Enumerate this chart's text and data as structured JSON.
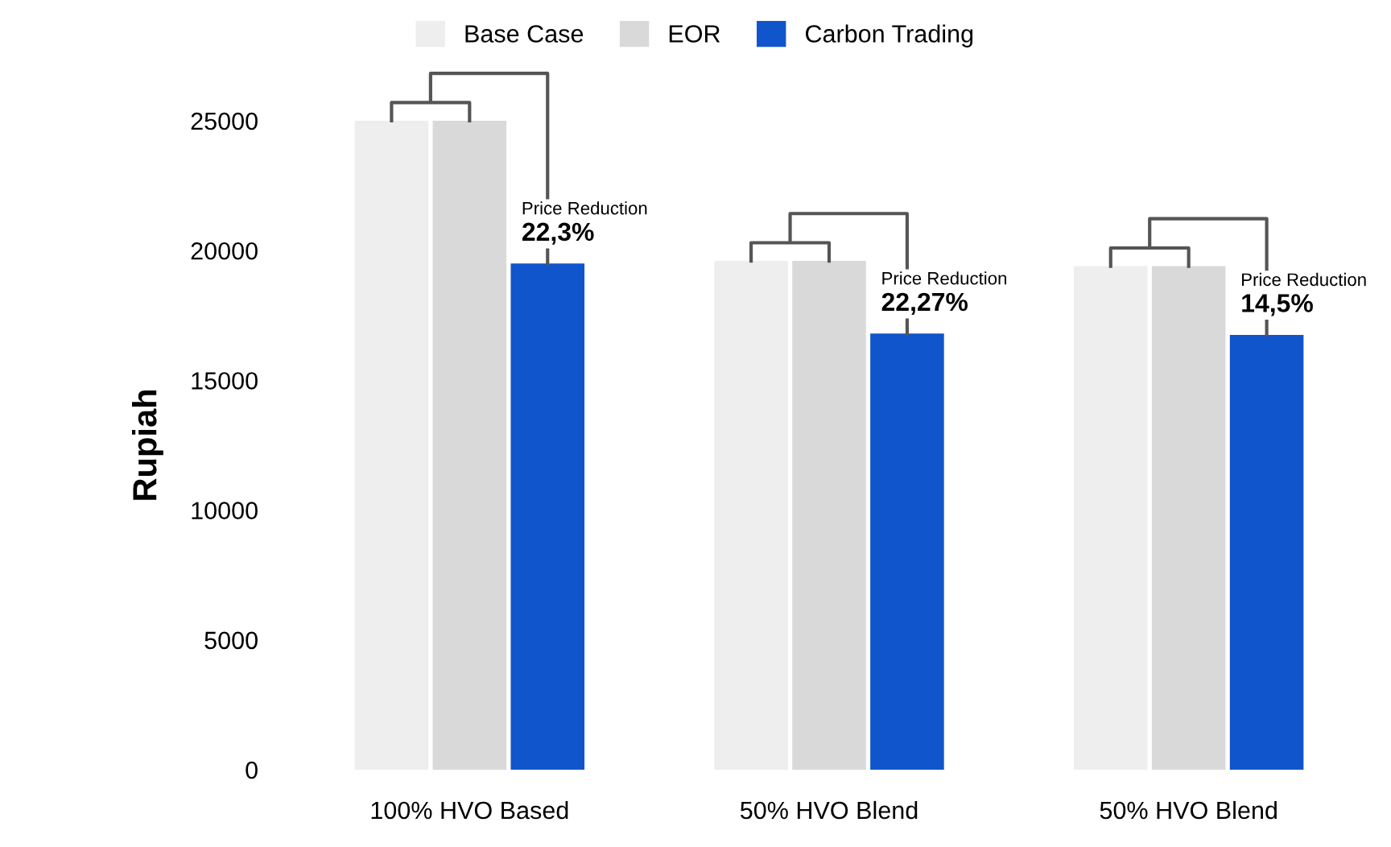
{
  "chart_data": {
    "type": "bar",
    "ylabel": "Rupiah",
    "categories": [
      "100% HVO Based",
      "50% HVO Blend",
      "50% HVO Blend"
    ],
    "series": [
      {
        "name": "Base Case",
        "color": "#eeeeee",
        "values": [
          25000,
          19600,
          19400
        ]
      },
      {
        "name": "EOR",
        "color": "#d9d9d9",
        "values": [
          25000,
          19600,
          19400
        ]
      },
      {
        "name": "Carbon Trading",
        "color": "#1155cc",
        "values": [
          19500,
          16800,
          16750
        ]
      }
    ],
    "ylim": [
      0,
      25000
    ],
    "yticks": [
      0,
      5000,
      10000,
      15000,
      20000,
      25000
    ],
    "grid": false,
    "legend": "top",
    "annotations": [
      "Price Reduction\n22,3%",
      "Price Reduction\n22,27%",
      "Price Reduction\n14,5%"
    ]
  }
}
